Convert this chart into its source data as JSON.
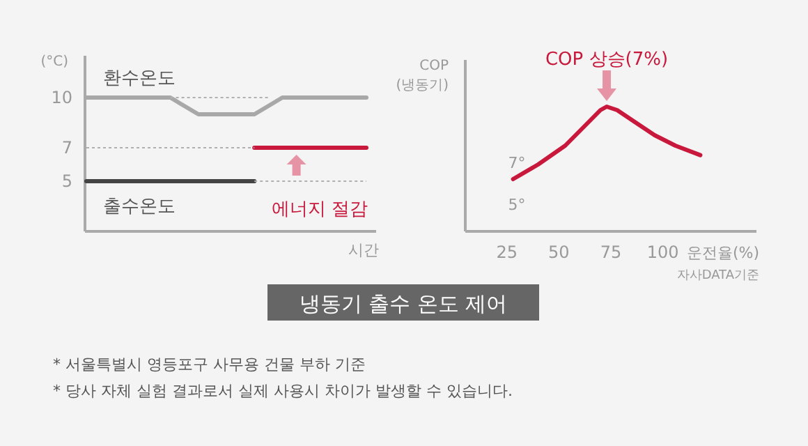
{
  "chart_data": [
    {
      "type": "line",
      "categories": [
        null,
        null,
        null,
        null,
        null,
        null,
        null,
        null,
        null,
        null,
        null,
        null,
        null,
        null,
        null,
        null,
        null,
        null,
        null,
        null,
        null
      ],
      "ylim": [
        2,
        12.5
      ],
      "yticks": [
        5,
        7,
        10
      ],
      "ylabel": "(°C)",
      "xlabel": "시간",
      "tick_labels": "y",
      "series": [
        {
          "name": "환수온도",
          "color": "#a8a8a8",
          "values": [
            10,
            10,
            10,
            10,
            10,
            10,
            10,
            9.5,
            9,
            9,
            9,
            9,
            9,
            9.5,
            10,
            10,
            10,
            10,
            10,
            10,
            10
          ]
        },
        {
          "name": "출수온도",
          "color": "#444444",
          "values": [
            5,
            5,
            5,
            5,
            5,
            5,
            5,
            5,
            5,
            5,
            5,
            5,
            5,
            null,
            null,
            null,
            null,
            null,
            null,
            null,
            null
          ]
        },
        {
          "color": "#c8193c",
          "values": [
            null,
            null,
            null,
            null,
            null,
            null,
            null,
            null,
            null,
            null,
            null,
            null,
            7,
            7,
            7,
            7,
            7,
            7,
            7,
            7,
            7
          ]
        },
        {
          "color": "#b0b0b0",
          "line_style": "dotted",
          "values": [
            7,
            7,
            7,
            7,
            7,
            7,
            7,
            7,
            7,
            7,
            7,
            7,
            7,
            null,
            null,
            null,
            null,
            null,
            null,
            null,
            null
          ]
        },
        {
          "color": "#b0b0b0",
          "line_style": "dotted",
          "values": [
            null,
            null,
            null,
            null,
            null,
            null,
            null,
            null,
            null,
            null,
            null,
            null,
            5,
            5,
            5,
            5,
            5,
            5,
            5,
            5,
            5
          ]
        },
        {
          "color": "#b0b0b0",
          "line_style": "dotted",
          "values": [
            null,
            null,
            null,
            null,
            null,
            null,
            10,
            10,
            10,
            10,
            10,
            10,
            10,
            10,
            null,
            null,
            null,
            null,
            null,
            null,
            null
          ]
        }
      ],
      "annotations": [
        "에너지 절감"
      ]
    },
    {
      "type": "line",
      "xlim": [
        5,
        145
      ],
      "ylim": [
        3.7,
        11.9
      ],
      "xticks": [
        25,
        50,
        75,
        100
      ],
      "yticks": [
        {
          "value": 5,
          "label": "5°"
        },
        {
          "value": 7,
          "label": "7°"
        }
      ],
      "xlabel": "운전율(%)",
      "ylabel": "COP\n(냉동기)",
      "series": [
        {
          "color": "#c8193c",
          "x": [
            28,
            40,
            53,
            63,
            70,
            73,
            78,
            87,
            96,
            106,
            118
          ],
          "values": [
            6.2,
            6.9,
            7.8,
            8.8,
            9.5,
            9.67,
            9.5,
            8.9,
            8.3,
            7.8,
            7.35
          ]
        }
      ],
      "annotations": [
        {
          "text": "COP 상승(7%)",
          "x": 73,
          "y": 9.67
        },
        "자사DATA기준"
      ]
    },
    {
      "type": "other",
      "title": "냉동기 출수 온도 제어",
      "annotations": [
        "* 서울특별시 영등포구 사무용 건물 부하 기준",
        "* 당사 자체 실험 결과로서 실제 사용시 차이가 발생할 수 있습니다."
      ]
    }
  ]
}
